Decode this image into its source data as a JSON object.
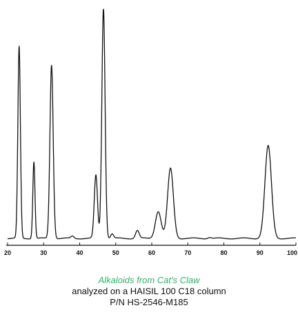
{
  "caption": {
    "title": "Alkaloids from Cat's Claw",
    "line1": "analyzed on a HAISIL 100 C18 column",
    "line2": "P/N  HS-2546-M185"
  },
  "colors": {
    "trace": "#111111",
    "caption_title": "#2bb56a",
    "text": "#111111"
  },
  "chart_data": {
    "type": "line",
    "title": "",
    "xlabel": "",
    "ylabel": "",
    "xlim": [
      20,
      100
    ],
    "ylim": [
      0,
      100
    ],
    "grid": false,
    "x_ticks": [
      20,
      30,
      40,
      50,
      60,
      70,
      80,
      90,
      100
    ],
    "x_tick_labels": [
      "20",
      "30",
      "40",
      "50",
      "60",
      "70",
      "80",
      "90",
      "100"
    ],
    "baseline": 3,
    "peaks": [
      {
        "x": 23.2,
        "height": 85,
        "width": 0.35
      },
      {
        "x": 27.3,
        "height": 34,
        "width": 0.3
      },
      {
        "x": 32.2,
        "height": 77,
        "width": 0.45
      },
      {
        "x": 38.0,
        "height": 1,
        "width": 0.4
      },
      {
        "x": 44.5,
        "height": 28,
        "width": 0.45
      },
      {
        "x": 46.6,
        "height": 102,
        "width": 0.45
      },
      {
        "x": 49.0,
        "height": 2,
        "width": 0.4
      },
      {
        "x": 56.0,
        "height": 3.5,
        "width": 0.5
      },
      {
        "x": 61.8,
        "height": 12,
        "width": 0.8
      },
      {
        "x": 65.2,
        "height": 31,
        "width": 0.8
      },
      {
        "x": 76.0,
        "height": 0.5,
        "width": 0.5
      },
      {
        "x": 92.3,
        "height": 41,
        "width": 0.9
      }
    ]
  }
}
